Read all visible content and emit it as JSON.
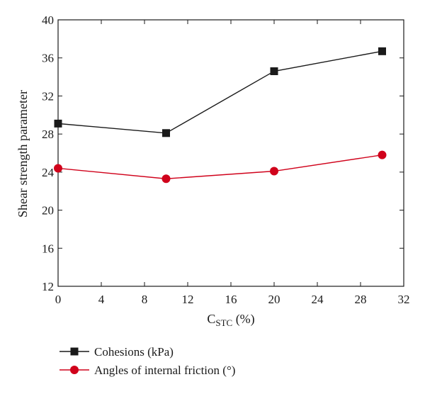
{
  "chart_data": {
    "type": "line",
    "title": "",
    "xlabel": {
      "main": "C",
      "subscript": "STC",
      "suffix": " (%)"
    },
    "ylabel": "Shear strength parameter",
    "xlim": [
      0,
      32
    ],
    "ylim": [
      12,
      40
    ],
    "xticks": [
      0,
      4,
      8,
      12,
      16,
      20,
      24,
      28,
      32
    ],
    "yticks": [
      12,
      16,
      20,
      24,
      28,
      32,
      36,
      40
    ],
    "grid": false,
    "legend_position": "bottom",
    "x": [
      0,
      10,
      20,
      30
    ],
    "series": [
      {
        "name": "Cohesions (kPa)",
        "values": [
          29.1,
          28.1,
          34.6,
          36.7
        ],
        "color": "#1a1a1a",
        "marker": "square"
      },
      {
        "name": "Angles of internal friction (°)",
        "values": [
          24.4,
          23.3,
          24.1,
          25.8
        ],
        "color": "#d0021b",
        "marker": "circle"
      }
    ]
  }
}
